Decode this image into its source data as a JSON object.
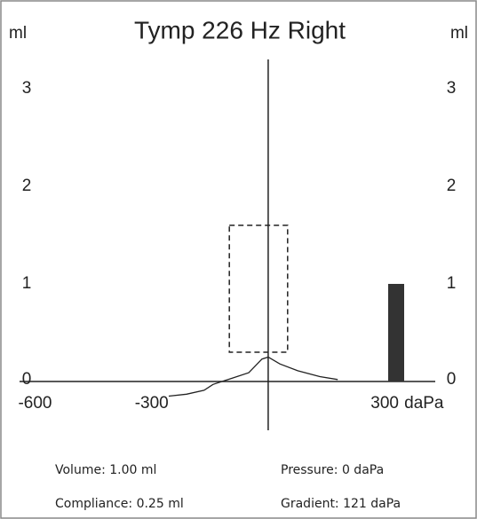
{
  "chart_data": {
    "type": "line",
    "title": "Tymp 226 Hz Right",
    "y_unit_left": "ml",
    "y_unit_right": "ml",
    "x_unit": "daPa",
    "x": [
      -256,
      -210,
      -165,
      -142,
      -96,
      -50,
      -16,
      0,
      30,
      76,
      133,
      179
    ],
    "values": [
      -0.15,
      -0.13,
      -0.09,
      -0.03,
      0.03,
      0.09,
      0.23,
      0.25,
      0.18,
      0.11,
      0.05,
      0.02
    ],
    "color": "#222222",
    "xlim": [
      -640,
      430
    ],
    "ylim": [
      -0.5,
      3.3
    ],
    "xticks": [
      -600,
      -300,
      300
    ],
    "yticks": [
      0,
      1,
      2,
      3
    ],
    "normal_region": {
      "x": [
        -100,
        50
      ],
      "y": [
        0.3,
        1.6
      ]
    },
    "volume_bar": 1.0,
    "bar_color": "#333333",
    "readouts": [
      "Volume: 1.00 ml",
      "Pressure: 0 daPa",
      "Compliance: 0.25 ml",
      "Gradient: 121 daPa"
    ]
  }
}
